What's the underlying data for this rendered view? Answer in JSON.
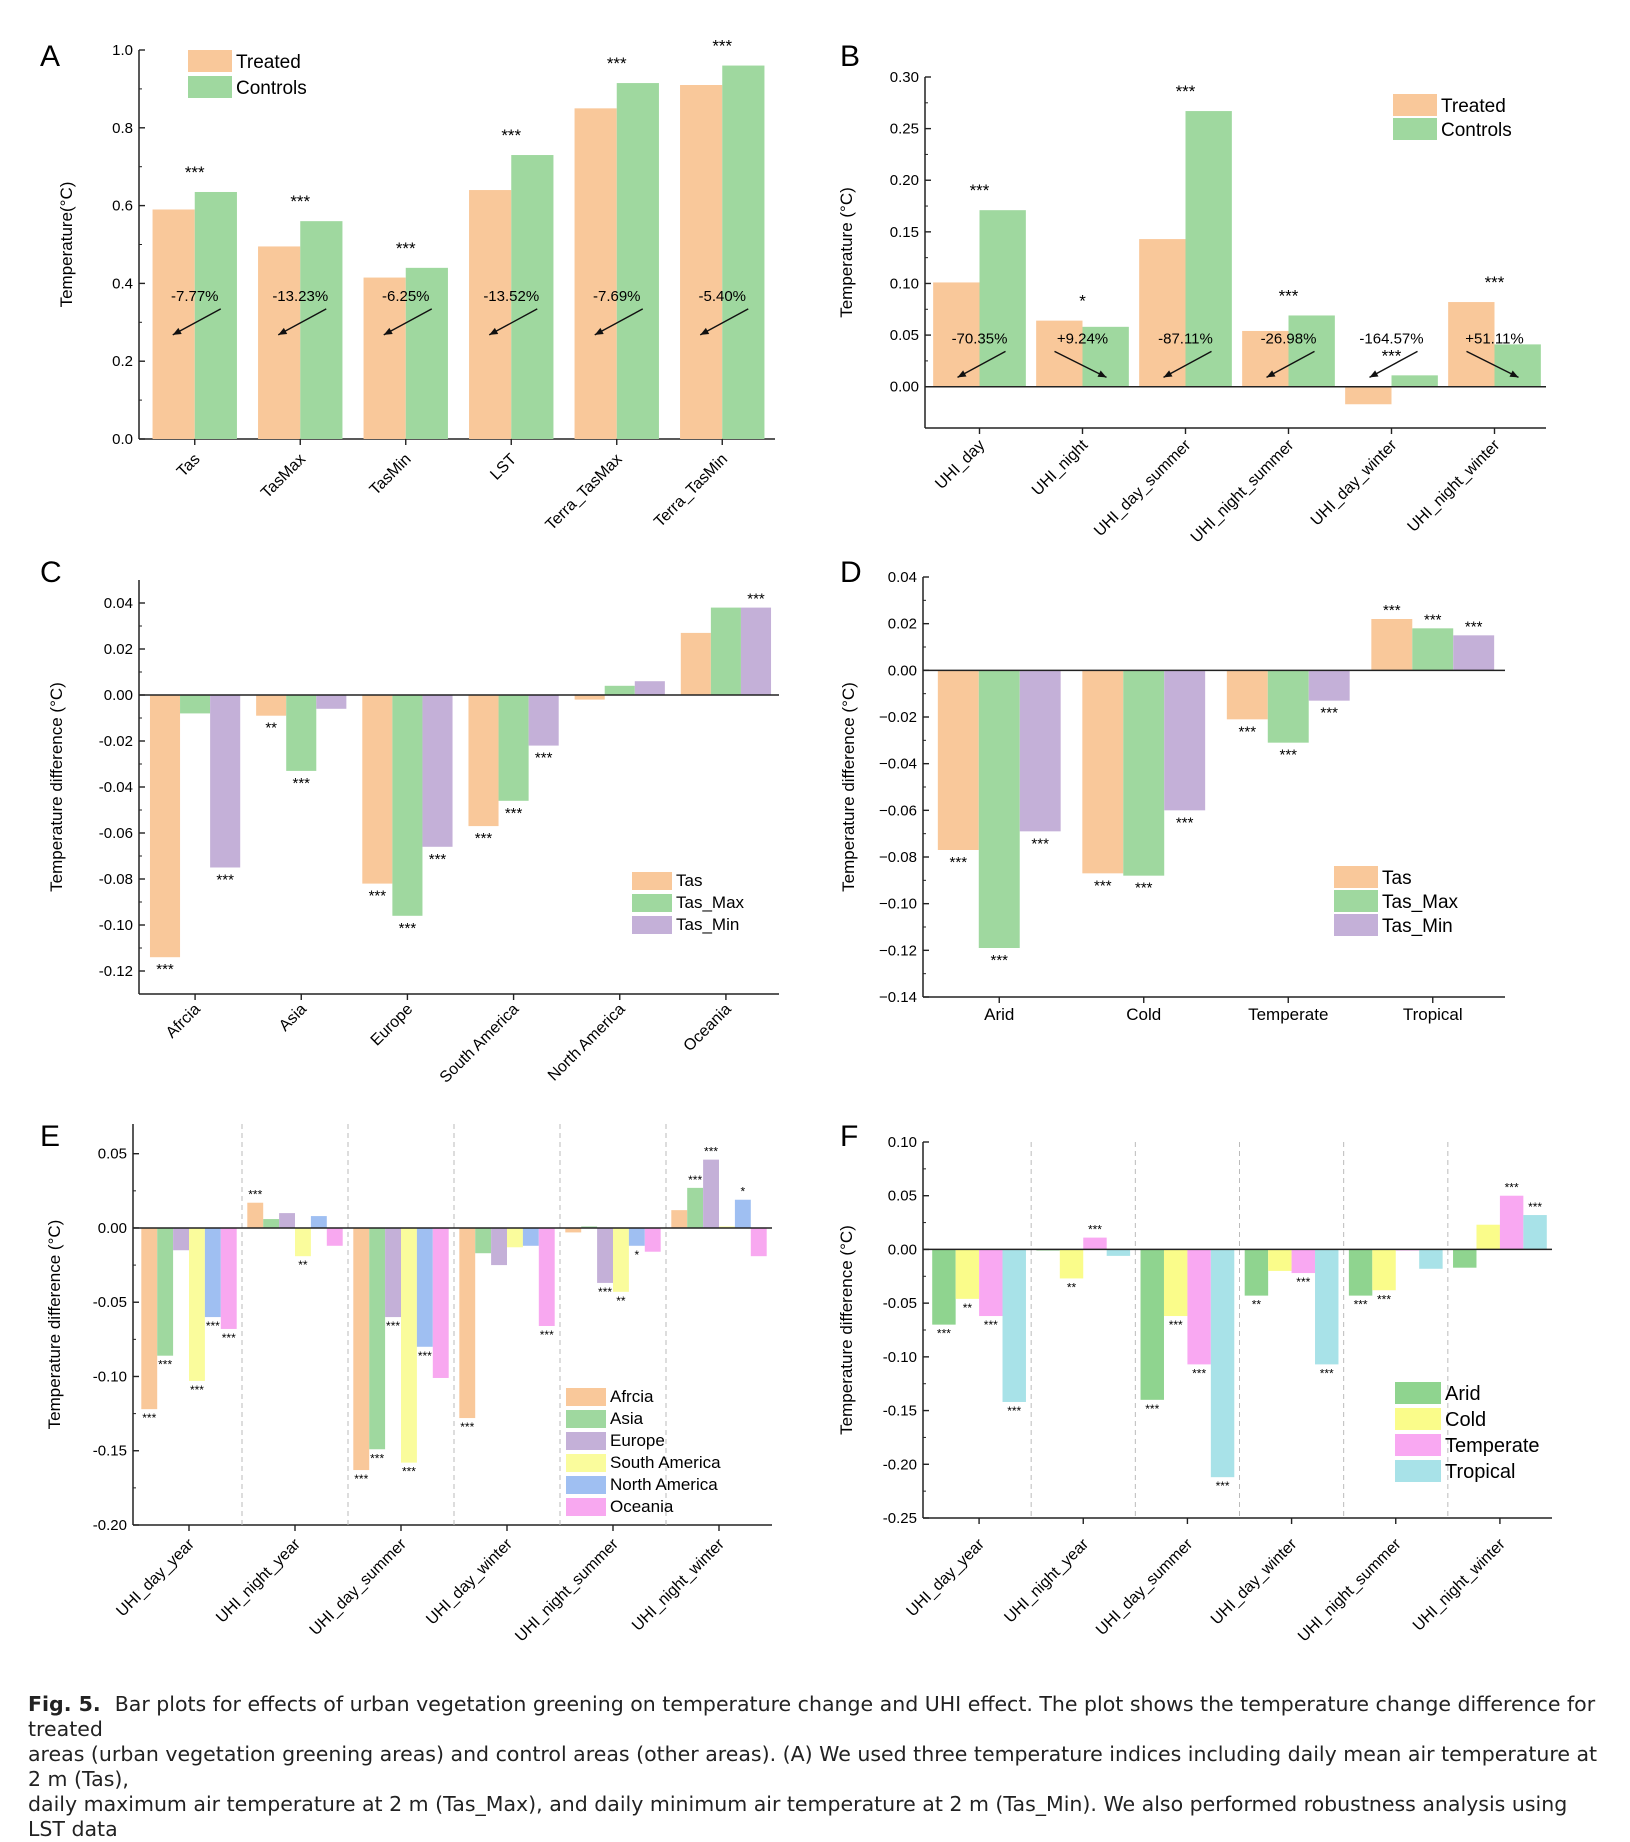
{
  "colors": {
    "treated": "#f9c89a",
    "controls": "#9fd89f",
    "tas": "#f9c89a",
    "tas_max": "#9fd89f",
    "tas_min": "#c4b0d8",
    "africa": "#f9c89a",
    "asia": "#9fd89f",
    "europe": "#c4b0d8",
    "south_america": "#fafc9c",
    "north_america": "#9fbff2",
    "oceania": "#f8a8f0",
    "arid": "#8fd48f",
    "cold": "#fafc8a",
    "temperate": "#f9a8f2",
    "tropical": "#a8e2e8"
  },
  "chart_data": [
    {
      "panel": "A",
      "type": "bar",
      "ylabel": "Temperature(°C)",
      "ylim": [
        0,
        1.0
      ],
      "yticks": [
        "0.0",
        "0.2",
        "0.4",
        "0.6",
        "0.8",
        "1.0"
      ],
      "categories": [
        "Tas",
        "TasMax",
        "TasMin",
        "LST",
        "Terra_TasMax",
        "Terra_TasMin"
      ],
      "series": [
        {
          "name": "Treated",
          "values": [
            0.59,
            0.495,
            0.415,
            0.64,
            0.85,
            0.91
          ]
        },
        {
          "name": "Controls",
          "values": [
            0.635,
            0.56,
            0.44,
            0.73,
            0.915,
            0.96
          ]
        }
      ],
      "significance": [
        "***",
        "***",
        "***",
        "***",
        "***",
        "***"
      ],
      "annotations": [
        "-7.77%",
        "-13.23%",
        "-6.25%",
        "-13.52%",
        "-7.69%",
        "-5.40%"
      ],
      "legend": "top-left"
    },
    {
      "panel": "B",
      "type": "bar",
      "ylabel": "Temperature (°C)",
      "ylim": [
        -0.04,
        0.3
      ],
      "yticks": [
        "0.00",
        "0.05",
        "0.10",
        "0.15",
        "0.20",
        "0.25",
        "0.30"
      ],
      "categories": [
        "UHI_day",
        "UHI_night",
        "UHI_day_summer",
        "UHI_night_summer",
        "UHI_day_winter",
        "UHI_night_winter"
      ],
      "series": [
        {
          "name": "Treated",
          "values": [
            0.101,
            0.064,
            0.143,
            0.054,
            -0.017,
            0.082
          ]
        },
        {
          "name": "Controls",
          "values": [
            0.171,
            0.058,
            0.267,
            0.069,
            0.011,
            0.041
          ]
        }
      ],
      "significance": [
        "***",
        "*",
        "***",
        "***",
        "***",
        "***"
      ],
      "annotations": [
        "-70.35%",
        "+9.24%",
        "-87.11%",
        "-26.98%",
        "-164.57%",
        "+51.11%"
      ],
      "legend": "top-right"
    },
    {
      "panel": "C",
      "type": "bar",
      "ylabel": "Temperature difference (°C)",
      "ylim": [
        -0.13,
        0.05
      ],
      "yticks": [
        "-0.12",
        "-0.10",
        "-0.08",
        "-0.06",
        "-0.04",
        "-0.02",
        "0.00",
        "0.02",
        "0.04"
      ],
      "categories": [
        "Afrcia",
        "Asia",
        "Europe",
        "South America",
        "North America",
        "Oceania"
      ],
      "series": [
        {
          "name": "Tas",
          "values": [
            -0.114,
            -0.009,
            -0.082,
            -0.057,
            -0.002,
            0.027
          ]
        },
        {
          "name": "Tas_Max",
          "values": [
            -0.008,
            -0.033,
            -0.096,
            -0.046,
            0.004,
            0.038
          ]
        },
        {
          "name": "Tas_Min",
          "values": [
            -0.075,
            -0.006,
            -0.066,
            -0.022,
            0.006,
            0.038
          ]
        }
      ],
      "significance": [
        [
          "***",
          "",
          "***"
        ],
        [
          "**",
          "***",
          ""
        ],
        [
          "***",
          "***",
          "***"
        ],
        [
          "***",
          "***",
          "***"
        ],
        [
          "",
          "",
          ""
        ],
        [
          "",
          "",
          "***"
        ]
      ],
      "legend": "bottom-right"
    },
    {
      "panel": "D",
      "type": "bar",
      "ylabel": "Temperature difference (°C)",
      "ylim": [
        -0.14,
        0.04
      ],
      "yticks": [
        "−0.14",
        "−0.12",
        "−0.10",
        "−0.08",
        "−0.06",
        "−0.04",
        "−0.02",
        "0.00",
        "0.02",
        "0.04"
      ],
      "categories": [
        "Arid",
        "Cold",
        "Temperate",
        "Tropical"
      ],
      "series": [
        {
          "name": "Tas",
          "values": [
            -0.077,
            -0.087,
            -0.021,
            0.022
          ]
        },
        {
          "name": "Tas_Max",
          "values": [
            -0.119,
            -0.088,
            -0.031,
            0.018
          ]
        },
        {
          "name": "Tas_Min",
          "values": [
            -0.069,
            -0.06,
            -0.013,
            0.015
          ]
        }
      ],
      "significance": [
        [
          "***",
          "***",
          "***"
        ],
        [
          "***",
          "***",
          "***"
        ],
        [
          "***",
          "***",
          "***"
        ],
        [
          "***",
          "***",
          "***"
        ]
      ],
      "legend": "bottom-right"
    },
    {
      "panel": "E",
      "type": "bar",
      "ylabel": "Temperature difference (°C)",
      "ylim": [
        -0.2,
        0.07
      ],
      "yticks": [
        "-0.20",
        "-0.15",
        "-0.10",
        "-0.05",
        "0.00",
        "0.05"
      ],
      "categories": [
        "UHI_day_year",
        "UHI_night_year",
        "UHI_day_summer",
        "UHI_day_winter",
        "UHI_night_summer",
        "UHI_night_winter"
      ],
      "series": [
        {
          "name": "Afrcia",
          "values": [
            -0.122,
            0.017,
            -0.163,
            -0.128,
            -0.003,
            0.012
          ]
        },
        {
          "name": "Asia",
          "values": [
            -0.086,
            0.006,
            -0.149,
            -0.017,
            0.001,
            0.027
          ]
        },
        {
          "name": "Europe",
          "values": [
            -0.015,
            0.01,
            -0.06,
            -0.025,
            -0.037,
            0.046
          ]
        },
        {
          "name": "South America",
          "values": [
            -0.103,
            -0.019,
            -0.158,
            -0.013,
            -0.043,
            0.001
          ]
        },
        {
          "name": "North America",
          "values": [
            -0.06,
            0.008,
            -0.08,
            -0.012,
            -0.012,
            0.019
          ]
        },
        {
          "name": "Oceania",
          "values": [
            -0.068,
            -0.012,
            -0.101,
            -0.066,
            -0.016,
            -0.019
          ]
        }
      ],
      "significance": [
        [
          "***",
          "***",
          "",
          "***",
          "***",
          "***"
        ],
        [
          "***",
          "",
          "",
          "**",
          "",
          ""
        ],
        [
          "***",
          "***",
          "***",
          "***",
          "***",
          ""
        ],
        [
          "***",
          "",
          "",
          "",
          "",
          "***"
        ],
        [
          "",
          "",
          "***",
          "**",
          "*",
          ""
        ],
        [
          "",
          "***",
          "***",
          "",
          "*",
          ""
        ]
      ],
      "legend": "bottom-right"
    },
    {
      "panel": "F",
      "type": "bar",
      "ylabel": "Temperature difference (°C)",
      "ylim": [
        -0.25,
        0.1
      ],
      "yticks": [
        "-0.25",
        "-0.20",
        "-0.15",
        "-0.10",
        "-0.05",
        "0.00",
        "0.05",
        "0.10"
      ],
      "categories": [
        "UHI_day_year",
        "UHI_night_year",
        "UHI_day_summer",
        "UHI_day_winter",
        "UHI_night_summer",
        "UHI_night_winter"
      ],
      "series": [
        {
          "name": "Arid",
          "values": [
            -0.07,
            -0.001,
            -0.14,
            -0.043,
            -0.043,
            -0.017
          ]
        },
        {
          "name": "Cold",
          "values": [
            -0.046,
            -0.027,
            -0.062,
            -0.02,
            -0.038,
            0.023
          ]
        },
        {
          "name": "Temperate",
          "values": [
            -0.062,
            0.011,
            -0.107,
            -0.022,
            -0.001,
            0.05
          ]
        },
        {
          "name": "Tropical",
          "values": [
            -0.142,
            -0.006,
            -0.212,
            -0.107,
            -0.018,
            0.032
          ]
        }
      ],
      "significance": [
        [
          "***",
          "**",
          "***",
          "***"
        ],
        [
          "",
          "**",
          "***",
          ""
        ],
        [
          "***",
          "***",
          "***",
          "***"
        ],
        [
          "**",
          "",
          "***",
          "***"
        ],
        [
          "***",
          "***",
          "",
          ""
        ],
        [
          "",
          "",
          "***",
          "***"
        ]
      ],
      "legend": "bottom-right"
    }
  ],
  "caption": {
    "label": "Fig. 5.",
    "lines": [
      "Bar plots for effects of urban vegetation greening on temperature change and UHI effect. The plot shows the temperature change difference for treated",
      "areas (urban vegetation greening areas) and control areas (other areas). (A) We used three temperature indices including daily mean air temperature at 2 m (Tas),",
      "daily maximum air temperature at 2 m (Tas_Max), and daily minimum air temperature at 2 m (Tas_Min). We also performed robustness analysis using LST data"
    ]
  }
}
